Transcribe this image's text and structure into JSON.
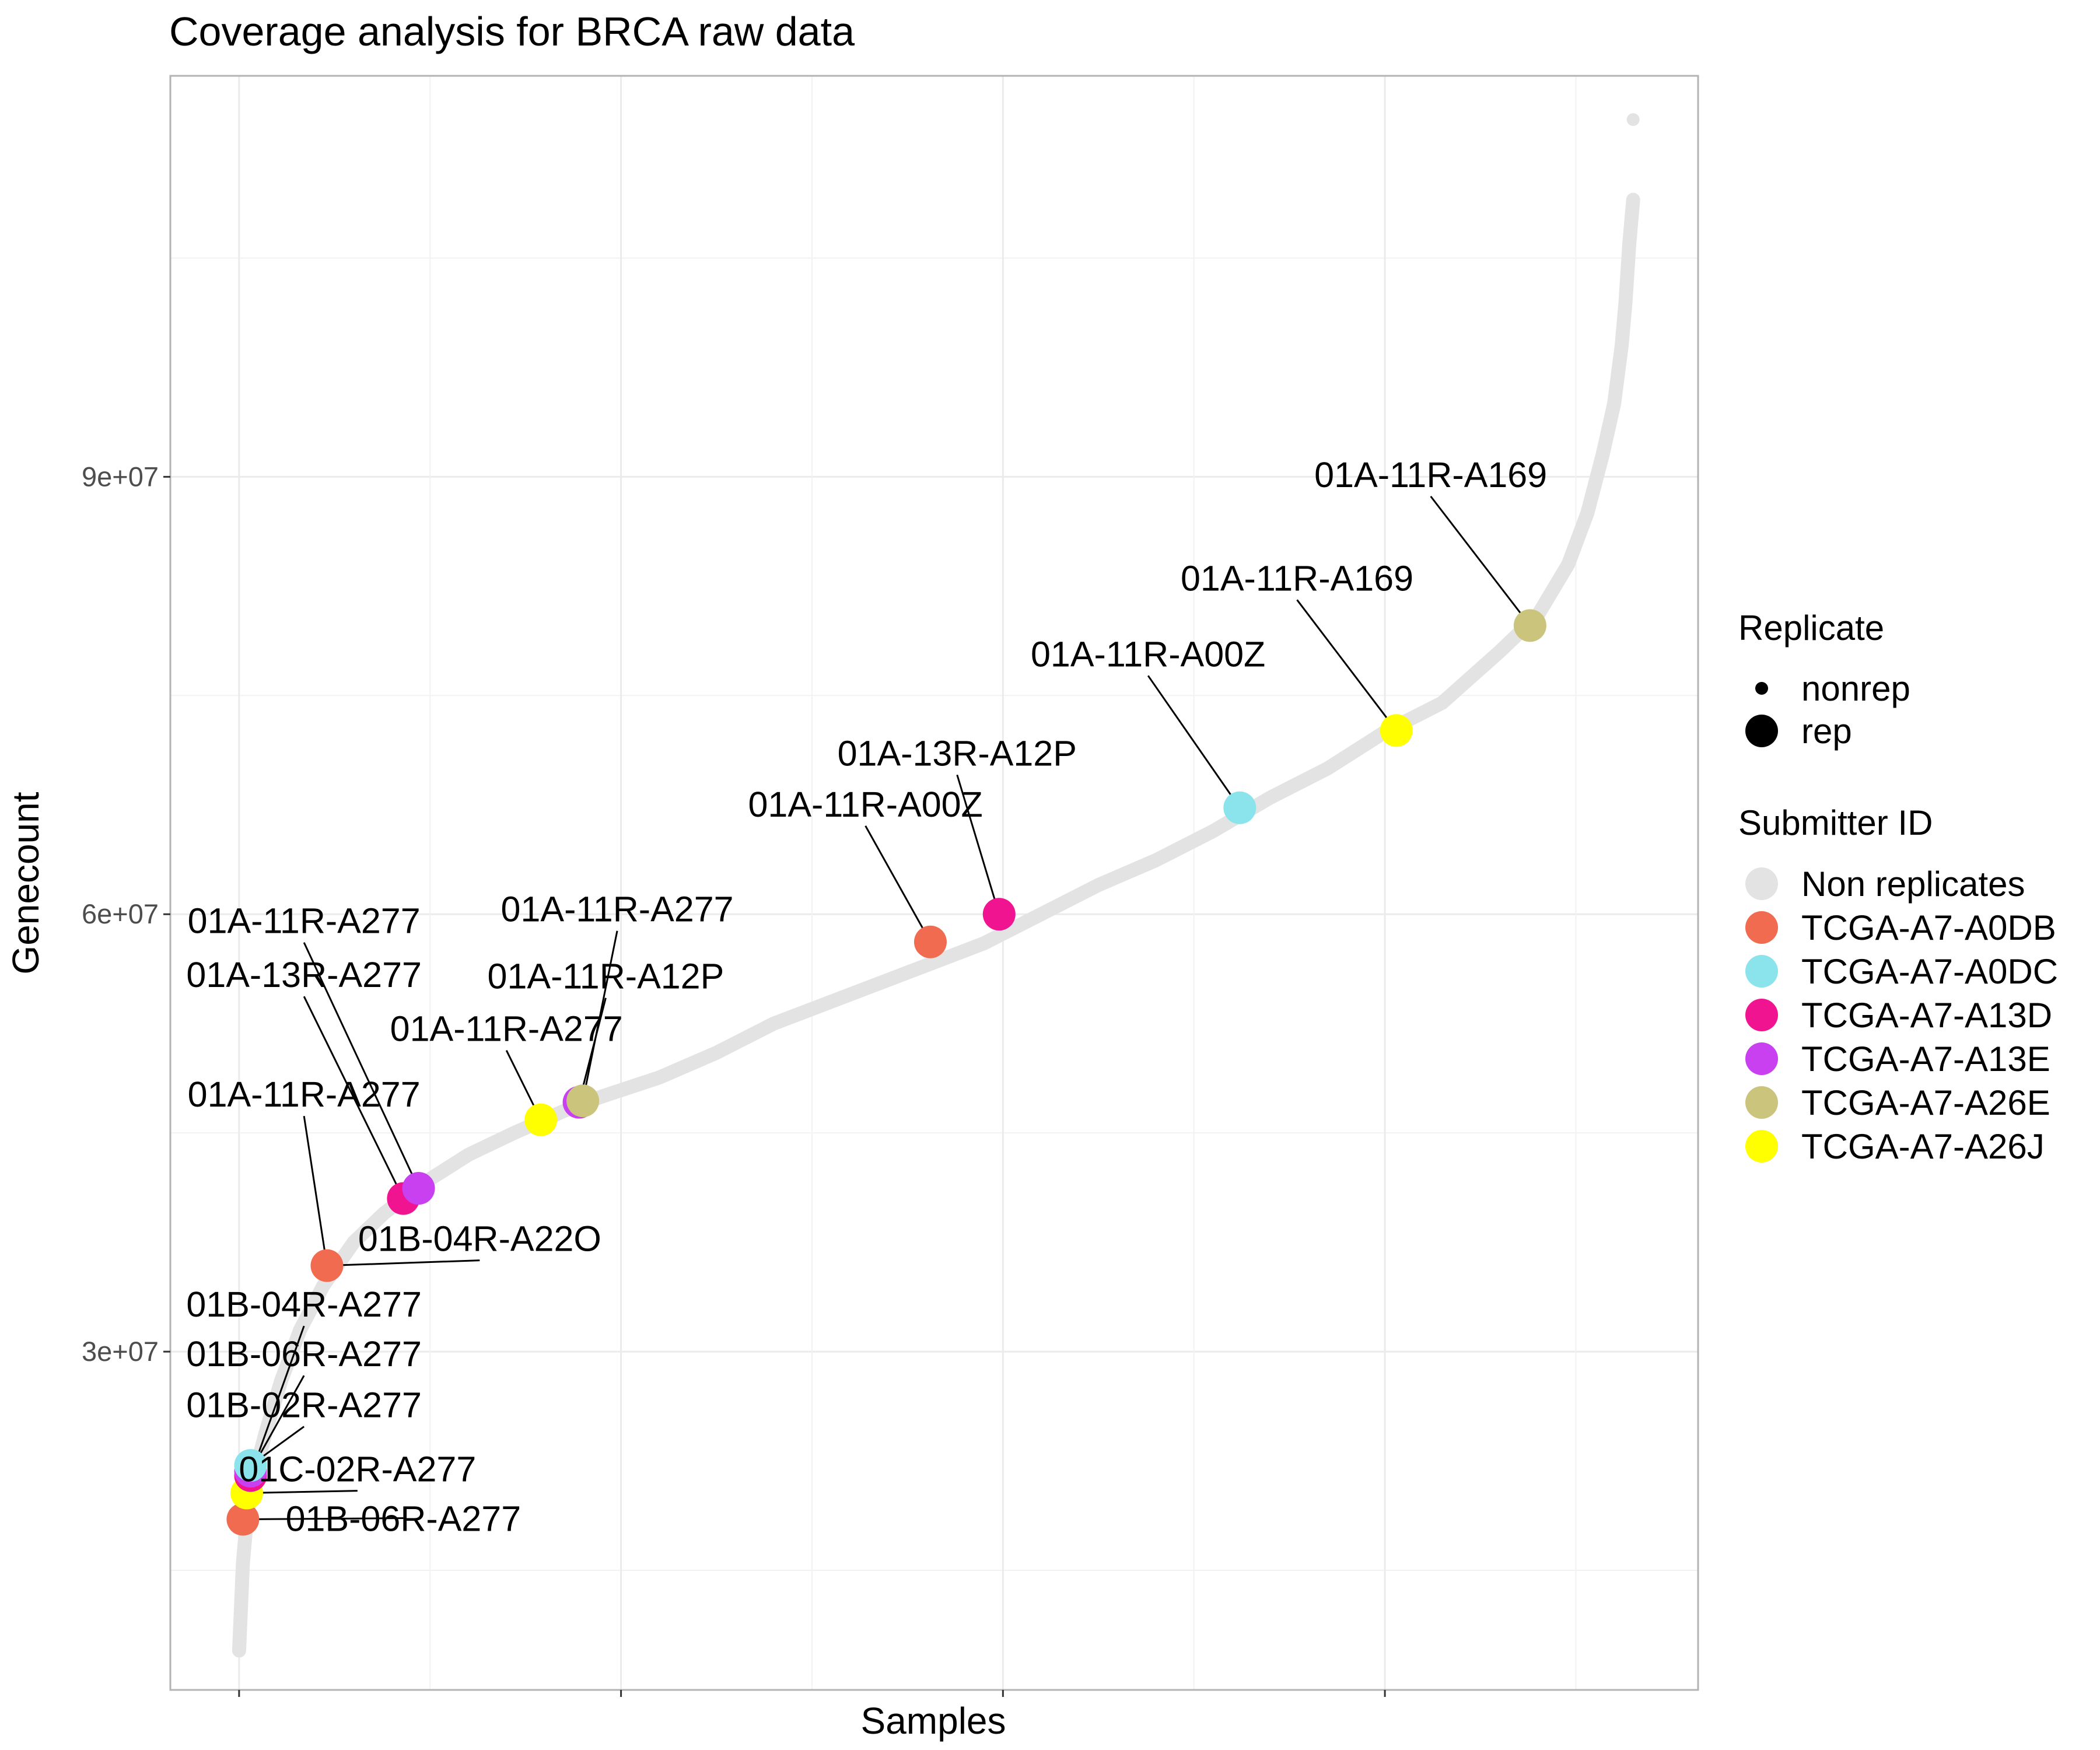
{
  "chart_data": {
    "type": "scatter",
    "title": "Coverage analysis for BRCA raw data",
    "xlabel": "Samples",
    "ylabel": "Genecount",
    "xlim": [
      -18,
      382
    ],
    "ylim": [
      6800000,
      117500000
    ],
    "x_gridlines": [
      0,
      50,
      100,
      150,
      200,
      250,
      300,
      350
    ],
    "y_ticks": [
      30000000,
      60000000,
      90000000
    ],
    "y_tick_labels": [
      "3e+07",
      "6e+07",
      "9e+07"
    ],
    "y_minor_gridlines": [
      15000000,
      45000000,
      75000000,
      105000000
    ],
    "grid": true,
    "curve_points": [
      [
        0,
        9500000
      ],
      [
        1,
        15500000
      ],
      [
        2,
        18500000
      ],
      [
        4,
        21500000
      ],
      [
        7,
        24500000
      ],
      [
        11,
        28000000
      ],
      [
        16,
        31500000
      ],
      [
        22,
        34500000
      ],
      [
        30,
        37500000
      ],
      [
        38,
        39500000
      ],
      [
        48,
        41500000
      ],
      [
        60,
        43500000
      ],
      [
        72,
        45000000
      ],
      [
        85,
        46500000
      ],
      [
        95,
        47500000
      ],
      [
        110,
        48800000
      ],
      [
        125,
        50500000
      ],
      [
        140,
        52500000
      ],
      [
        160,
        54500000
      ],
      [
        180,
        56500000
      ],
      [
        195,
        58000000
      ],
      [
        210,
        60000000
      ],
      [
        225,
        62000000
      ],
      [
        240,
        63700000
      ],
      [
        255,
        65700000
      ],
      [
        270,
        68000000
      ],
      [
        285,
        70000000
      ],
      [
        300,
        72500000
      ],
      [
        315,
        74500000
      ],
      [
        330,
        78000000
      ],
      [
        340,
        80500000
      ],
      [
        348,
        84000000
      ],
      [
        353,
        87500000
      ],
      [
        357,
        91500000
      ],
      [
        360,
        95000000
      ],
      [
        362,
        99000000
      ],
      [
        363,
        102000000
      ],
      [
        364,
        106000000
      ],
      [
        365,
        109000000
      ]
    ],
    "outlier_points": [
      [
        0,
        9500000
      ],
      [
        364,
        105500000
      ],
      [
        365,
        114500000
      ]
    ],
    "replicate_points": [
      {
        "x": 1,
        "y": 18500000,
        "submitter": "TCGA-A7-A0DB"
      },
      {
        "x": 2,
        "y": 20300000,
        "submitter": "TCGA-A7-A26J"
      },
      {
        "x": 3,
        "y": 21500000,
        "submitter": "TCGA-A7-A13D"
      },
      {
        "x": 3,
        "y": 21800000,
        "submitter": "TCGA-A7-A13E"
      },
      {
        "x": 3,
        "y": 22200000,
        "submitter": "TCGA-A7-A0DC"
      },
      {
        "x": 23,
        "y": 35900000,
        "submitter": "TCGA-A7-A0DB"
      },
      {
        "x": 43,
        "y": 40500000,
        "submitter": "TCGA-A7-A13D"
      },
      {
        "x": 47,
        "y": 41200000,
        "submitter": "TCGA-A7-A13E"
      },
      {
        "x": 79,
        "y": 45900000,
        "submitter": "TCGA-A7-A26J"
      },
      {
        "x": 89,
        "y": 47100000,
        "submitter": "TCGA-A7-A13E"
      },
      {
        "x": 90,
        "y": 47200000,
        "submitter": "TCGA-A7-A26E"
      },
      {
        "x": 181,
        "y": 58100000,
        "submitter": "TCGA-A7-A0DB"
      },
      {
        "x": 199,
        "y": 60000000,
        "submitter": "TCGA-A7-A13D"
      },
      {
        "x": 262,
        "y": 67300000,
        "submitter": "TCGA-A7-A0DC"
      },
      {
        "x": 303,
        "y": 72600000,
        "submitter": "TCGA-A7-A26J"
      },
      {
        "x": 338,
        "y": 79800000,
        "submitter": "TCGA-A7-A26E"
      }
    ],
    "annotations": [
      {
        "text": "01A-11R-A169",
        "label_x": 312,
        "label_y": 89300000,
        "point_x": 338,
        "point_y": 79800000
      },
      {
        "text": "01A-11R-A169",
        "label_x": 277,
        "label_y": 82200000,
        "point_x": 303,
        "point_y": 72600000
      },
      {
        "text": "01A-11R-A00Z",
        "label_x": 238,
        "label_y": 77000000,
        "point_x": 262,
        "point_y": 67300000
      },
      {
        "text": "01A-13R-A12P",
        "label_x": 188,
        "label_y": 70200000,
        "point_x": 199,
        "point_y": 60000000
      },
      {
        "text": "01A-11R-A00Z",
        "label_x": 164,
        "label_y": 66700000,
        "point_x": 181,
        "point_y": 58100000
      },
      {
        "text": "01A-11R-A277",
        "label_x": 99,
        "label_y": 59500000,
        "point_x": 90,
        "point_y": 47200000
      },
      {
        "text": "01A-11R-A12P",
        "label_x": 96,
        "label_y": 54900000,
        "point_x": 89,
        "point_y": 47100000
      },
      {
        "text": "01A-11R-A277",
        "label_x": 70,
        "label_y": 51300000,
        "point_x": 79,
        "point_y": 45900000
      },
      {
        "text": "01A-11R-A277",
        "label_x": 17,
        "label_y": 58700000,
        "point_x": 47,
        "point_y": 41200000
      },
      {
        "text": "01A-13R-A277",
        "label_x": 17,
        "label_y": 55000000,
        "point_x": 43,
        "point_y": 40500000
      },
      {
        "text": "01A-11R-A277",
        "label_x": 17,
        "label_y": 46800000,
        "point_x": 23,
        "point_y": 35900000
      },
      {
        "text": "01B-04R-A22O",
        "label_x": 63,
        "label_y": 36900000,
        "point_x": 23,
        "point_y": 35900000
      },
      {
        "text": "01B-04R-A277",
        "label_x": 17,
        "label_y": 32400000,
        "point_x": 3,
        "point_y": 21500000
      },
      {
        "text": "01B-06R-A277",
        "label_x": 17,
        "label_y": 29000000,
        "point_x": 3,
        "point_y": 21800000
      },
      {
        "text": "01B-02R-A277",
        "label_x": 17,
        "label_y": 25500000,
        "point_x": 3,
        "point_y": 22200000
      },
      {
        "text": "01C-02R-A277",
        "label_x": 31,
        "label_y": 21100000,
        "point_x": 2,
        "point_y": 20300000
      },
      {
        "text": "01B-06R-A277",
        "label_x": 43,
        "label_y": 17700000,
        "point_x": 1,
        "point_y": 18500000
      }
    ],
    "legend": {
      "position": "right",
      "replicate_title": "Replicate",
      "replicate_items": [
        {
          "label": "nonrep",
          "size": "small"
        },
        {
          "label": "rep",
          "size": "large"
        }
      ],
      "submitter_title": "Submitter ID",
      "submitter_items": [
        {
          "label": "Non replicates",
          "color": "#e3e3e3"
        },
        {
          "label": "TCGA-A7-A0DB",
          "color": "#f06b4f"
        },
        {
          "label": "TCGA-A7-A0DC",
          "color": "#8be3ec"
        },
        {
          "label": "TCGA-A7-A13D",
          "color": "#f01491"
        },
        {
          "label": "TCGA-A7-A13E",
          "color": "#c840f0"
        },
        {
          "label": "TCGA-A7-A26E",
          "color": "#cbc47c"
        },
        {
          "label": "TCGA-A7-A26J",
          "color": "#ffff00"
        }
      ]
    }
  }
}
